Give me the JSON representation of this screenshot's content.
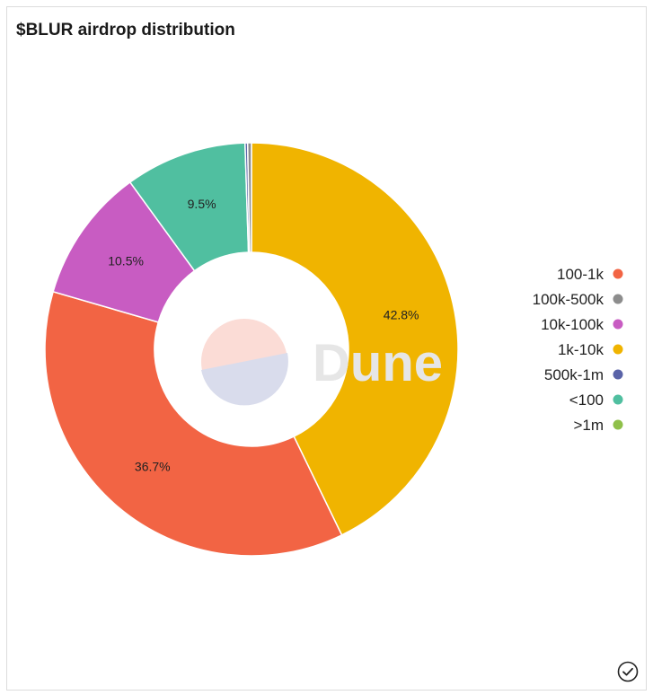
{
  "title": "$BLUR airdrop distribution",
  "watermark": "Dune",
  "chart_data": {
    "type": "pie",
    "donut": true,
    "title": "$BLUR airdrop distribution",
    "legend_position": "right",
    "slices": [
      {
        "name": "1k-10k",
        "value": 42.8,
        "label": "42.8%",
        "color": "#f0b400"
      },
      {
        "name": "100-1k",
        "value": 36.7,
        "label": "36.7%",
        "color": "#f26444"
      },
      {
        "name": "10k-100k",
        "value": 10.5,
        "label": "10.5%",
        "color": "#c85cc2"
      },
      {
        "name": "<100",
        "value": 9.5,
        "label": "9.5%",
        "color": "#50bfa0"
      },
      {
        "name": "500k-1m",
        "value": 0.2,
        "label": "",
        "color": "#5a63a8"
      },
      {
        "name": "100k-500k",
        "value": 0.3,
        "label": "",
        "color": "#8d8d8d"
      },
      {
        "name": ">1m",
        "value": 0.0,
        "label": "",
        "color": "#8fc04a"
      }
    ],
    "legend": [
      {
        "name": "100-1k",
        "color": "#f26444"
      },
      {
        "name": "100k-500k",
        "color": "#8d8d8d"
      },
      {
        "name": "10k-100k",
        "color": "#c85cc2"
      },
      {
        "name": "1k-10k",
        "color": "#f0b400"
      },
      {
        "name": "500k-1m",
        "color": "#5a63a8"
      },
      {
        "name": "<100",
        "color": "#50bfa0"
      },
      {
        "name": ">1m",
        "color": "#8fc04a"
      }
    ]
  },
  "icons": {
    "status": "check-circle-icon"
  }
}
